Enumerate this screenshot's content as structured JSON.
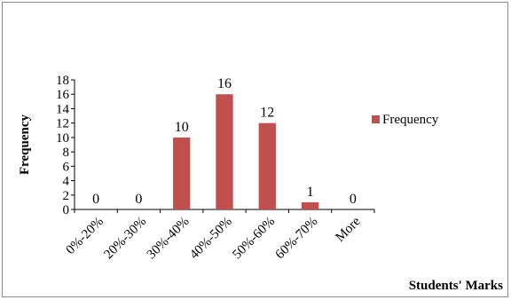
{
  "chart_data": {
    "type": "bar",
    "categories": [
      "0%-20%",
      "20%-30%",
      "30%-40%",
      "40%-50%",
      "50%-60%",
      "60%-70%",
      "More"
    ],
    "series": [
      {
        "name": "Frequency",
        "values": [
          0,
          0,
          10,
          16,
          12,
          1,
          0
        ],
        "color": "#c0504d"
      }
    ],
    "data_labels": [
      "0",
      "0",
      "10",
      "16",
      "12",
      "1",
      "0"
    ],
    "title": "",
    "xlabel": "Students' Marks",
    "ylabel": "Frequency",
    "ylim": [
      0,
      18
    ],
    "yticks": [
      "0",
      "2",
      "4",
      "6",
      "8",
      "10",
      "12",
      "14",
      "16",
      "18"
    ],
    "grid": false,
    "legend": "right"
  }
}
